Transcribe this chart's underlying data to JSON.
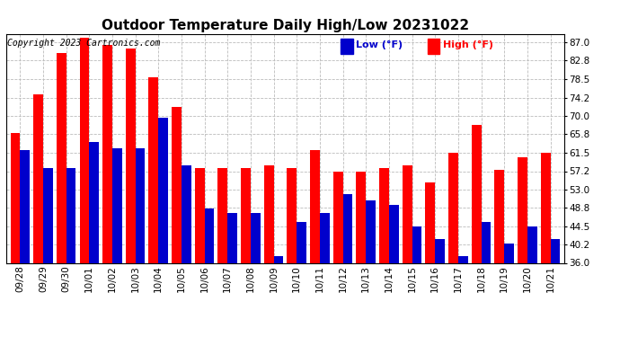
{
  "title": "Outdoor Temperature Daily High/Low 20231022",
  "copyright": "Copyright 2023 Cartronics.com",
  "legend_low_label": "Low",
  "legend_high_label": "High",
  "legend_unit": "(°F)",
  "dates": [
    "09/28",
    "09/29",
    "09/30",
    "10/01",
    "10/02",
    "10/03",
    "10/04",
    "10/05",
    "10/06",
    "10/07",
    "10/08",
    "10/09",
    "10/10",
    "10/11",
    "10/12",
    "10/13",
    "10/14",
    "10/15",
    "10/16",
    "10/17",
    "10/18",
    "10/19",
    "10/20",
    "10/21"
  ],
  "high": [
    66.0,
    75.0,
    84.5,
    88.0,
    86.5,
    85.5,
    79.0,
    72.0,
    58.0,
    58.0,
    58.0,
    58.5,
    58.0,
    62.0,
    57.0,
    57.2,
    58.0,
    58.5,
    54.5,
    61.5,
    68.0,
    57.5,
    60.5,
    61.5
  ],
  "low": [
    62.0,
    58.0,
    58.0,
    64.0,
    62.5,
    62.5,
    69.5,
    58.5,
    48.5,
    47.5,
    47.5,
    37.5,
    45.5,
    47.5,
    52.0,
    50.5,
    49.5,
    44.5,
    41.5,
    37.5,
    45.5,
    40.5,
    44.5,
    41.5
  ],
  "ylim_min": 36.0,
  "ylim_max": 89.0,
  "yticks": [
    36.0,
    40.2,
    44.5,
    48.8,
    53.0,
    57.2,
    61.5,
    65.8,
    70.0,
    74.2,
    78.5,
    82.8,
    87.0
  ],
  "high_color": "#ff0000",
  "low_color": "#0000cc",
  "bg_color": "#ffffff",
  "grid_color": "#bbbbbb",
  "title_fontsize": 11,
  "tick_fontsize": 7.5,
  "copyright_fontsize": 7
}
